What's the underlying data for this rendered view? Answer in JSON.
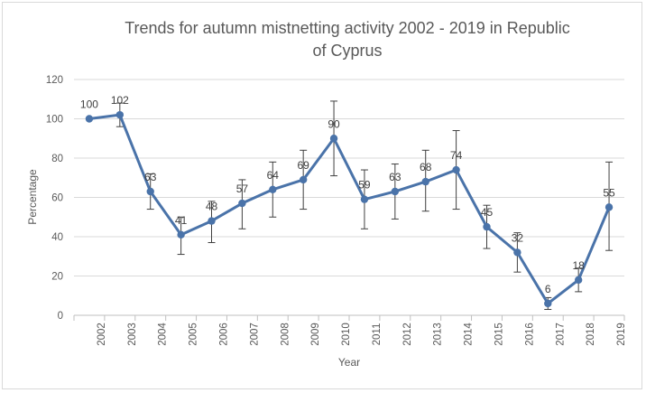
{
  "chart_data": {
    "type": "line",
    "title_line1": "Trends for autumn mistnetting activity 2002 - 2019 in Republic",
    "title_line2": "of Cyprus",
    "xlabel": "Year",
    "ylabel": "Percentage",
    "ylim": [
      0,
      120
    ],
    "yticks": [
      "0",
      "20",
      "40",
      "60",
      "80",
      "100",
      "120"
    ],
    "grid": true,
    "categories": [
      "2002",
      "2003",
      "2004",
      "2005",
      "2006",
      "2007",
      "2008",
      "2009",
      "2010",
      "2011",
      "2012",
      "2013",
      "2014",
      "2015",
      "2016",
      "2017",
      "2018",
      "2019"
    ],
    "series": [
      {
        "values": [
          100,
          102,
          63,
          41,
          48,
          57,
          64,
          69,
          90,
          59,
          63,
          68,
          74,
          45,
          32,
          6,
          18,
          55
        ],
        "error_low": [
          100,
          96,
          54,
          31,
          37,
          44,
          50,
          54,
          71,
          44,
          49,
          53,
          54,
          34,
          22,
          3,
          12,
          33
        ],
        "error_high": [
          100,
          108,
          72,
          50,
          58,
          69,
          78,
          84,
          109,
          74,
          77,
          84,
          94,
          56,
          42,
          9,
          24,
          78
        ],
        "data_labels": [
          "100",
          "102",
          "63",
          "41",
          "48",
          "57",
          "64",
          "69",
          "90",
          "59",
          "63",
          "68",
          "74",
          "45",
          "32",
          "6",
          "18",
          "55"
        ],
        "color": "#4a73a9"
      }
    ]
  }
}
